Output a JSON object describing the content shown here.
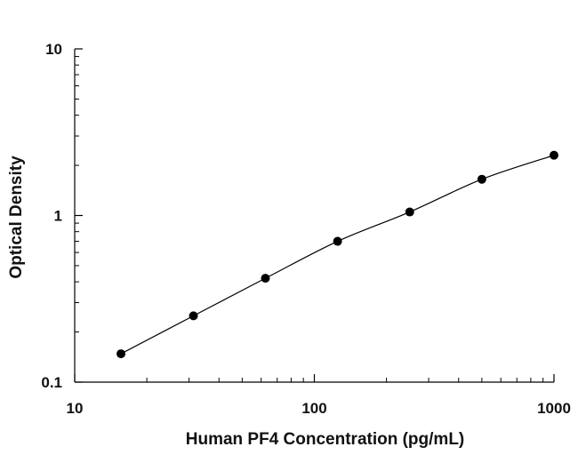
{
  "chart_data": {
    "type": "scatter",
    "title": "",
    "xlabel": "Human PF4 Concentration (pg/mL)",
    "ylabel": "Optical Density",
    "x_scale": "log",
    "y_scale": "log",
    "xlim": [
      10,
      1000
    ],
    "ylim": [
      0.1,
      10
    ],
    "x_ticks": [
      "10",
      "100",
      "1000"
    ],
    "y_ticks": [
      "0.1",
      "1",
      "10"
    ],
    "grid": false,
    "legend": "none",
    "fit_curve": true,
    "marker_color": "#000000",
    "series": [
      {
        "x": [
          15.6,
          31.3,
          62.5,
          125,
          250,
          500,
          1000
        ],
        "y": [
          0.148,
          0.25,
          0.42,
          0.7,
          1.05,
          1.65,
          2.3
        ]
      }
    ]
  }
}
